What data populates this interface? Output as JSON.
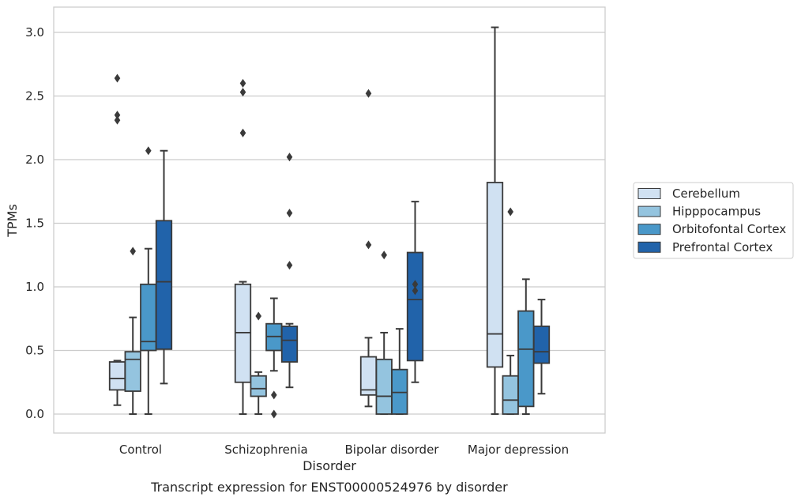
{
  "chart_data": {
    "type": "box",
    "title": "",
    "caption": "Transcript expression for ENST00000524976 by disorder",
    "xlabel": "Disorder",
    "ylabel": "TPMs",
    "ylim": [
      -0.15,
      3.2
    ],
    "yticks": [
      "0.0",
      "0.5",
      "1.0",
      "1.5",
      "2.0",
      "2.5",
      "3.0"
    ],
    "grid": true,
    "legend_position": "right",
    "categories": [
      "Control",
      "Schizophrenia",
      "Bipolar disorder",
      "Major depression"
    ],
    "series": [
      {
        "name": "Cerebellum",
        "color": "#d0e1f2",
        "boxes": [
          {
            "whislo": 0.07,
            "q1": 0.19,
            "med": 0.28,
            "q3": 0.41,
            "whishi": 0.42,
            "fliers": [
              2.31,
              2.35,
              2.64
            ]
          },
          {
            "whislo": 0.0,
            "q1": 0.25,
            "med": 0.64,
            "q3": 1.02,
            "whishi": 1.04,
            "fliers": [
              2.21,
              2.53,
              2.6
            ]
          },
          {
            "whislo": 0.06,
            "q1": 0.15,
            "med": 0.19,
            "q3": 0.45,
            "whishi": 0.6,
            "fliers": [
              1.33,
              2.52
            ]
          },
          {
            "whislo": 0.0,
            "q1": 0.37,
            "med": 0.63,
            "q3": 1.82,
            "whishi": 3.04,
            "fliers": []
          }
        ]
      },
      {
        "name": "Hipppocampus",
        "color": "#94c4df",
        "boxes": [
          {
            "whislo": 0.0,
            "q1": 0.18,
            "med": 0.43,
            "q3": 0.49,
            "whishi": 0.76,
            "fliers": [
              1.28
            ]
          },
          {
            "whislo": 0.0,
            "q1": 0.14,
            "med": 0.2,
            "q3": 0.3,
            "whishi": 0.33,
            "fliers": [
              0.77
            ]
          },
          {
            "whislo": 0.0,
            "q1": 0.0,
            "med": 0.14,
            "q3": 0.43,
            "whishi": 0.64,
            "fliers": [
              1.25
            ]
          },
          {
            "whislo": 0.0,
            "q1": 0.0,
            "med": 0.11,
            "q3": 0.3,
            "whishi": 0.46,
            "fliers": [
              1.59
            ]
          }
        ]
      },
      {
        "name": "Orbitofontal Cortex",
        "color": "#4a98c9",
        "boxes": [
          {
            "whislo": 0.0,
            "q1": 0.5,
            "med": 0.57,
            "q3": 1.02,
            "whishi": 1.3,
            "fliers": [
              2.07
            ]
          },
          {
            "whislo": 0.34,
            "q1": 0.5,
            "med": 0.61,
            "q3": 0.71,
            "whishi": 0.91,
            "fliers": [
              0.0,
              0.15
            ]
          },
          {
            "whislo": 0.0,
            "q1": 0.0,
            "med": 0.17,
            "q3": 0.35,
            "whishi": 0.67,
            "fliers": []
          },
          {
            "whislo": 0.0,
            "q1": 0.06,
            "med": 0.51,
            "q3": 0.81,
            "whishi": 1.06,
            "fliers": []
          }
        ]
      },
      {
        "name": "Prefrontal Cortex",
        "color": "#2163aa",
        "boxes": [
          {
            "whislo": 0.24,
            "q1": 0.51,
            "med": 1.04,
            "q3": 1.52,
            "whishi": 2.07,
            "fliers": []
          },
          {
            "whislo": 0.21,
            "q1": 0.41,
            "med": 0.58,
            "q3": 0.69,
            "whishi": 0.71,
            "fliers": [
              1.17,
              1.58,
              2.02
            ]
          },
          {
            "whislo": 0.25,
            "q1": 0.42,
            "med": 0.9,
            "q3": 1.27,
            "whishi": 1.67,
            "fliers": [
              0.97,
              1.02
            ]
          },
          {
            "whislo": 0.16,
            "q1": 0.4,
            "med": 0.49,
            "q3": 0.69,
            "whishi": 0.9,
            "fliers": []
          }
        ]
      }
    ]
  }
}
